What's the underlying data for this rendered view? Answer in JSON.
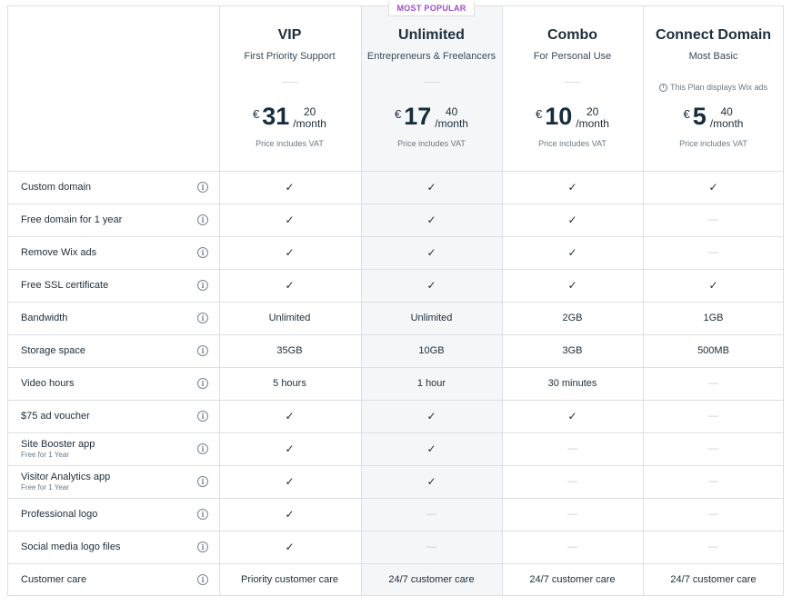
{
  "badge": "MOST POPULAR",
  "plans": [
    {
      "name": "VIP",
      "subtitle": "First Priority Support",
      "note": "",
      "currency": "€",
      "price_whole": "31",
      "price_cents": "20",
      "period": "/month",
      "vat": "Price includes VAT"
    },
    {
      "name": "Unlimited",
      "subtitle": "Entrepreneurs & Freelancers",
      "note": "",
      "currency": "€",
      "price_whole": "17",
      "price_cents": "40",
      "period": "/month",
      "vat": "Price includes VAT"
    },
    {
      "name": "Combo",
      "subtitle": "For Personal Use",
      "note": "",
      "currency": "€",
      "price_whole": "10",
      "price_cents": "20",
      "period": "/month",
      "vat": "Price includes VAT"
    },
    {
      "name": "Connect Domain",
      "subtitle": "Most Basic",
      "note": "This Plan displays Wix ads",
      "currency": "€",
      "price_whole": "5",
      "price_cents": "40",
      "period": "/month",
      "vat": "Price includes VAT"
    }
  ],
  "features": [
    {
      "label": "Custom domain",
      "sub": "",
      "values": [
        "check",
        "check",
        "check",
        "check"
      ]
    },
    {
      "label": "Free domain for 1 year",
      "sub": "",
      "values": [
        "check",
        "check",
        "check",
        "dash"
      ]
    },
    {
      "label": "Remove Wix ads",
      "sub": "",
      "values": [
        "check",
        "check",
        "check",
        "dash"
      ]
    },
    {
      "label": "Free SSL certificate",
      "sub": "",
      "values": [
        "check",
        "check",
        "check",
        "check"
      ]
    },
    {
      "label": "Bandwidth",
      "sub": "",
      "values": [
        "Unlimited",
        "Unlimited",
        "2GB",
        "1GB"
      ]
    },
    {
      "label": "Storage space",
      "sub": "",
      "values": [
        "35GB",
        "10GB",
        "3GB",
        "500MB"
      ]
    },
    {
      "label": "Video hours",
      "sub": "",
      "values": [
        "5 hours",
        "1 hour",
        "30 minutes",
        "dash"
      ]
    },
    {
      "label": "$75 ad voucher",
      "sub": "",
      "values": [
        "check",
        "check",
        "check",
        "dash"
      ]
    },
    {
      "label": "Site Booster app",
      "sub": "Free for 1 Year",
      "values": [
        "check",
        "check",
        "dash",
        "dash"
      ]
    },
    {
      "label": "Visitor Analytics app",
      "sub": "Free for 1 Year",
      "values": [
        "check",
        "check",
        "dash",
        "dash"
      ]
    },
    {
      "label": "Professional logo",
      "sub": "",
      "values": [
        "check",
        "dash",
        "dash",
        "dash"
      ]
    },
    {
      "label": "Social media logo files",
      "sub": "",
      "values": [
        "check",
        "dash",
        "dash",
        "dash"
      ]
    },
    {
      "label": "Customer care",
      "sub": "",
      "values": [
        "Priority customer care",
        "24/7 customer care",
        "24/7 customer care",
        "24/7 customer care"
      ]
    }
  ],
  "icons": {
    "check": "✓",
    "dash": "—",
    "info": "i"
  }
}
